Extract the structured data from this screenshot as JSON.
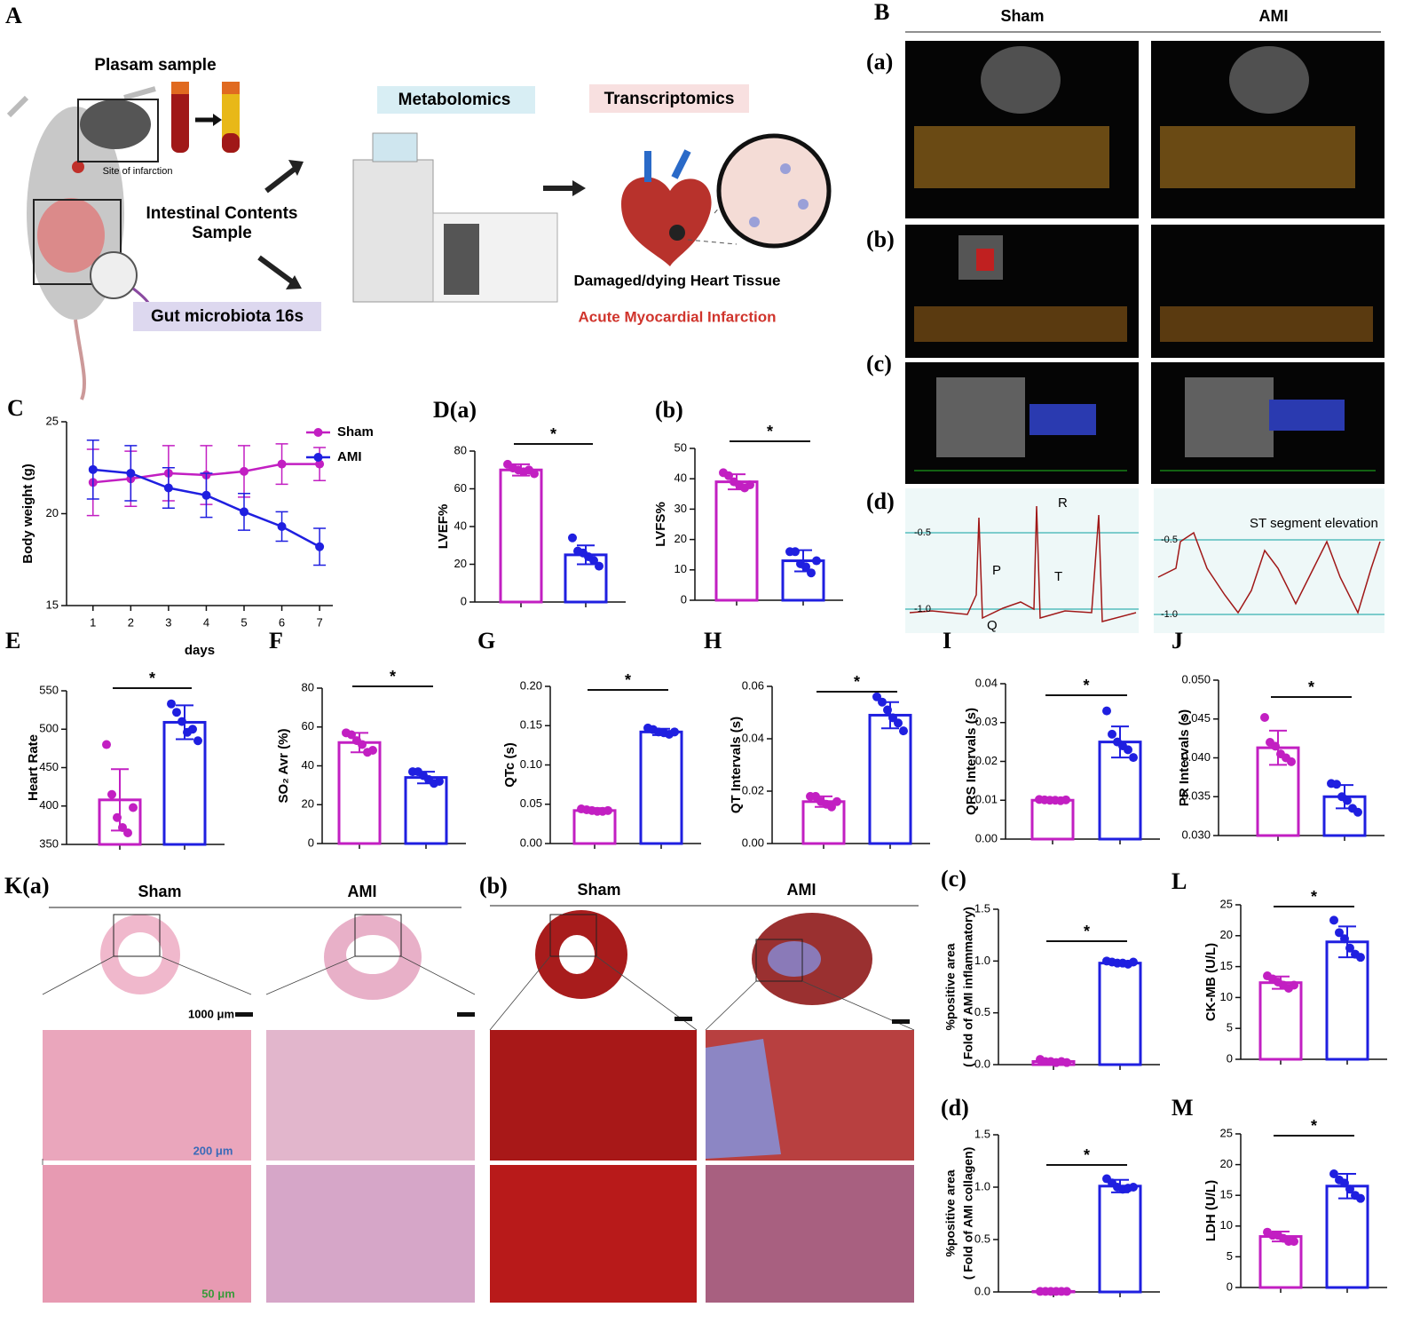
{
  "panel_a": {
    "label": "A",
    "plasma": "Plasam sample",
    "site": "Site of infarction",
    "intestinal": [
      "Intestinal Contents",
      "Sample"
    ],
    "gut": "Gut microbiota 16s",
    "metabolomics": "Metabolomics",
    "transcriptomics": "Transcriptomics",
    "tissue": "Damaged/dying Heart Tissue",
    "ami": "Acute Myocardial Infarction"
  },
  "panel_b": {
    "label": "B",
    "groups": [
      "Sham",
      "AMI"
    ],
    "rows": [
      "(a)",
      "(b)",
      "(c)",
      "(d)"
    ],
    "ecg_sham": {
      "ticks": [
        "-0.5",
        "-1.0"
      ],
      "waves": [
        "R",
        "P",
        "T",
        "Q"
      ]
    },
    "ecg_ami": {
      "ticks": [
        "-0.5",
        "-1.0"
      ],
      "annotation": "ST segment elevation"
    }
  },
  "panel_k": {
    "label_a": "K(a)",
    "label_b": "(b)",
    "groups_a": [
      "Sham",
      "AMI"
    ],
    "groups_b": [
      "Sham",
      "AMI"
    ],
    "scales": [
      "1000 μm",
      "200 μm",
      "50 μm"
    ]
  },
  "chart_data": [
    {
      "type": "line",
      "panel": "C",
      "x": [
        1,
        2,
        3,
        4,
        5,
        6,
        7
      ],
      "xlim": [
        0.3,
        7.35
      ],
      "xticks": [
        1,
        2,
        3,
        4,
        5,
        6,
        7
      ],
      "ylim": [
        15,
        25
      ],
      "yticks": [
        15,
        20,
        25
      ],
      "xlabel": "days",
      "ylabel": "Body weight (g)",
      "series": [
        {
          "name": "Sham",
          "color": "#c21fc2",
          "values": [
            21.7,
            21.9,
            22.2,
            22.1,
            22.3,
            22.7,
            22.7
          ],
          "errors": [
            1.8,
            1.5,
            1.5,
            1.6,
            1.4,
            1.1,
            0.9
          ]
        },
        {
          "name": "AMI",
          "color": "#1f1fe0",
          "values": [
            22.4,
            22.2,
            21.4,
            21.0,
            20.1,
            19.3,
            18.2
          ],
          "errors": [
            1.6,
            1.5,
            1.1,
            1.2,
            1.0,
            0.8,
            1.0
          ]
        }
      ]
    },
    {
      "type": "bar",
      "panel": "D(a)",
      "ylabel": "LVEF%",
      "categories": [
        null,
        null
      ],
      "colors": [
        "#c21fc2",
        "#1f1fe0"
      ],
      "ylim": [
        0,
        80
      ],
      "yticks": [
        0,
        20,
        40,
        60,
        80
      ],
      "values": [
        70,
        25
      ],
      "errors": [
        3,
        5
      ],
      "points": [
        [
          73,
          71,
          70,
          69,
          70,
          68
        ],
        [
          34,
          27,
          26,
          24,
          22,
          19
        ]
      ],
      "annotation": "*"
    },
    {
      "type": "bar",
      "panel": "(b)",
      "ylabel": "LVFS%",
      "categories": [
        null,
        null
      ],
      "colors": [
        "#c21fc2",
        "#1f1fe0"
      ],
      "ylim": [
        0,
        50
      ],
      "yticks": [
        0,
        10,
        20,
        30,
        40,
        50
      ],
      "values": [
        39,
        13
      ],
      "errors": [
        2.5,
        3.5
      ],
      "points": [
        [
          42,
          41,
          39,
          38,
          37,
          38
        ],
        [
          16,
          16,
          12,
          11,
          9,
          13
        ]
      ],
      "annotation": "*"
    },
    {
      "type": "bar",
      "panel": "E",
      "ylabel": "Heart Rate",
      "categories": [
        null,
        null
      ],
      "colors": [
        "#c21fc2",
        "#1f1fe0"
      ],
      "ylim": [
        350,
        550
      ],
      "yticks": [
        350,
        400,
        450,
        500,
        550
      ],
      "values": [
        408,
        509
      ],
      "errors": [
        40,
        22
      ],
      "points": [
        [
          480,
          415,
          385,
          372,
          365,
          398
        ],
        [
          533,
          522,
          510,
          496,
          500,
          485
        ]
      ],
      "annotation": "*"
    },
    {
      "type": "bar",
      "panel": "F",
      "ylabel": "SO₂ Avr (%)",
      "categories": [
        null,
        null
      ],
      "colors": [
        "#c21fc2",
        "#1f1fe0"
      ],
      "ylim": [
        0,
        80
      ],
      "yticks": [
        0,
        20,
        40,
        60,
        80
      ],
      "values": [
        52,
        34
      ],
      "errors": [
        5,
        3
      ],
      "points": [
        [
          57,
          56,
          53,
          51,
          47,
          48
        ],
        [
          37,
          37,
          35,
          33,
          31,
          32
        ]
      ],
      "annotation": "*"
    },
    {
      "type": "bar",
      "panel": "G",
      "ylabel": "QTc (s)",
      "categories": [
        null,
        null
      ],
      "colors": [
        "#c21fc2",
        "#1f1fe0"
      ],
      "ylim": [
        0,
        0.2
      ],
      "yticks": [
        {
          "value": 0,
          "label": "0.00"
        },
        0.05,
        {
          "value": 0.1,
          "label": "0.10"
        },
        0.15,
        {
          "value": 0.2,
          "label": "0.20"
        }
      ],
      "values": [
        0.042,
        0.142
      ],
      "errors": [
        0.003,
        0.004
      ],
      "points": [
        [
          0.044,
          0.043,
          0.042,
          0.041,
          0.041,
          0.042
        ],
        [
          0.147,
          0.145,
          0.142,
          0.141,
          0.139,
          0.142
        ]
      ],
      "annotation": "*"
    },
    {
      "type": "bar",
      "panel": "H",
      "ylabel": "QT Intervals (s)",
      "categories": [
        null,
        null
      ],
      "colors": [
        "#c21fc2",
        "#1f1fe0"
      ],
      "ylim": [
        0,
        0.06
      ],
      "yticks": [
        {
          "value": 0,
          "label": "0.00"
        },
        0.02,
        0.04,
        0.06
      ],
      "values": [
        0.016,
        0.049
      ],
      "errors": [
        0.002,
        0.005
      ],
      "points": [
        [
          0.018,
          0.018,
          0.016,
          0.015,
          0.014,
          0.016
        ],
        [
          0.056,
          0.054,
          0.051,
          0.048,
          0.046,
          0.043
        ]
      ],
      "annotation": "*"
    },
    {
      "type": "bar",
      "panel": "I",
      "ylabel": "QRS Intervals (s)",
      "categories": [
        null,
        null
      ],
      "colors": [
        "#c21fc2",
        "#1f1fe0"
      ],
      "ylim": [
        0,
        0.04
      ],
      "yticks": [
        {
          "value": 0,
          "label": "0.00"
        },
        0.01,
        0.02,
        0.03,
        0.04
      ],
      "values": [
        0.01,
        0.025
      ],
      "errors": [
        0.0003,
        0.004
      ],
      "points": [
        [
          0.0102,
          0.0101,
          0.01,
          0.01,
          0.0099,
          0.0101
        ],
        [
          0.033,
          0.027,
          0.025,
          0.024,
          0.023,
          0.021
        ]
      ],
      "annotation": "*"
    },
    {
      "type": "bar",
      "panel": "J",
      "ylabel": "PR Intervals (s)",
      "categories": [
        null,
        null
      ],
      "colors": [
        "#c21fc2",
        "#1f1fe0"
      ],
      "ylim": [
        0.03,
        0.05
      ],
      "yticks": [
        {
          "value": 0.03,
          "label": "0.030"
        },
        0.035,
        {
          "value": 0.04,
          "label": "0.040"
        },
        0.045,
        {
          "value": 0.05,
          "label": "0.050"
        }
      ],
      "values": [
        0.0413,
        0.035
      ],
      "errors": [
        0.0022,
        0.0015
      ],
      "points": [
        [
          0.0452,
          0.042,
          0.0415,
          0.0405,
          0.04,
          0.0395
        ],
        [
          0.0367,
          0.0366,
          0.035,
          0.0345,
          0.0335,
          0.033
        ]
      ],
      "annotation": "*"
    },
    {
      "type": "bar",
      "panel": "(c)",
      "ylabel": [
        "%positive area",
        "( Fold of AMI inflammatory)"
      ],
      "categories": [
        null,
        null
      ],
      "colors": [
        "#c21fc2",
        "#1f1fe0"
      ],
      "ylim": [
        0,
        1.5
      ],
      "yticks": [
        {
          "value": 0,
          "label": "0.0"
        },
        0.5,
        {
          "value": 1,
          "label": "1.0"
        },
        1.5
      ],
      "values": [
        0.03,
        0.98
      ],
      "errors": [
        0.01,
        0.02
      ],
      "points": [
        [
          0.05,
          0.03,
          0.03,
          0.02,
          0.03,
          0.02
        ],
        [
          1.0,
          0.99,
          0.98,
          0.98,
          0.97,
          0.99
        ]
      ],
      "annotation": "*"
    },
    {
      "type": "bar",
      "panel": "(d)",
      "ylabel": [
        "%positive area",
        "( Fold of AMI collagen)"
      ],
      "categories": [
        null,
        null
      ],
      "colors": [
        "#c21fc2",
        "#1f1fe0"
      ],
      "ylim": [
        0,
        1.5
      ],
      "yticks": [
        {
          "value": 0,
          "label": "0.0"
        },
        0.5,
        {
          "value": 1,
          "label": "1.0"
        },
        1.5
      ],
      "values": [
        0.005,
        1.01
      ],
      "errors": [
        0.003,
        0.06
      ],
      "points": [
        [
          0.005,
          0.005,
          0.005,
          0.005,
          0.005,
          0.005
        ],
        [
          1.08,
          1.04,
          1.0,
          0.98,
          0.99,
          1.0
        ]
      ],
      "annotation": "*"
    },
    {
      "type": "bar",
      "panel": "L",
      "ylabel": "CK-MB (U/L)",
      "categories": [
        null,
        null
      ],
      "colors": [
        "#c21fc2",
        "#1f1fe0"
      ],
      "ylim": [
        0,
        25
      ],
      "yticks": [
        0,
        5,
        10,
        15,
        20,
        25
      ],
      "values": [
        12.4,
        19
      ],
      "errors": [
        1,
        2.5
      ],
      "points": [
        [
          13.5,
          13,
          12.5,
          12,
          11.5,
          12
        ],
        [
          22.5,
          20.5,
          19.5,
          18,
          17,
          16.5
        ]
      ],
      "annotation": "*"
    },
    {
      "type": "bar",
      "panel": "M",
      "ylabel": "LDH (U/L)",
      "categories": [
        null,
        null
      ],
      "colors": [
        "#c21fc2",
        "#1f1fe0"
      ],
      "ylim": [
        0,
        25
      ],
      "yticks": [
        0,
        5,
        10,
        15,
        20,
        25
      ],
      "values": [
        8.3,
        16.5
      ],
      "errors": [
        0.8,
        2
      ],
      "points": [
        [
          9,
          8.5,
          8.5,
          8,
          7.5,
          7.5
        ],
        [
          18.5,
          17.5,
          17,
          16,
          15,
          14.5
        ]
      ],
      "annotation": "*"
    }
  ]
}
